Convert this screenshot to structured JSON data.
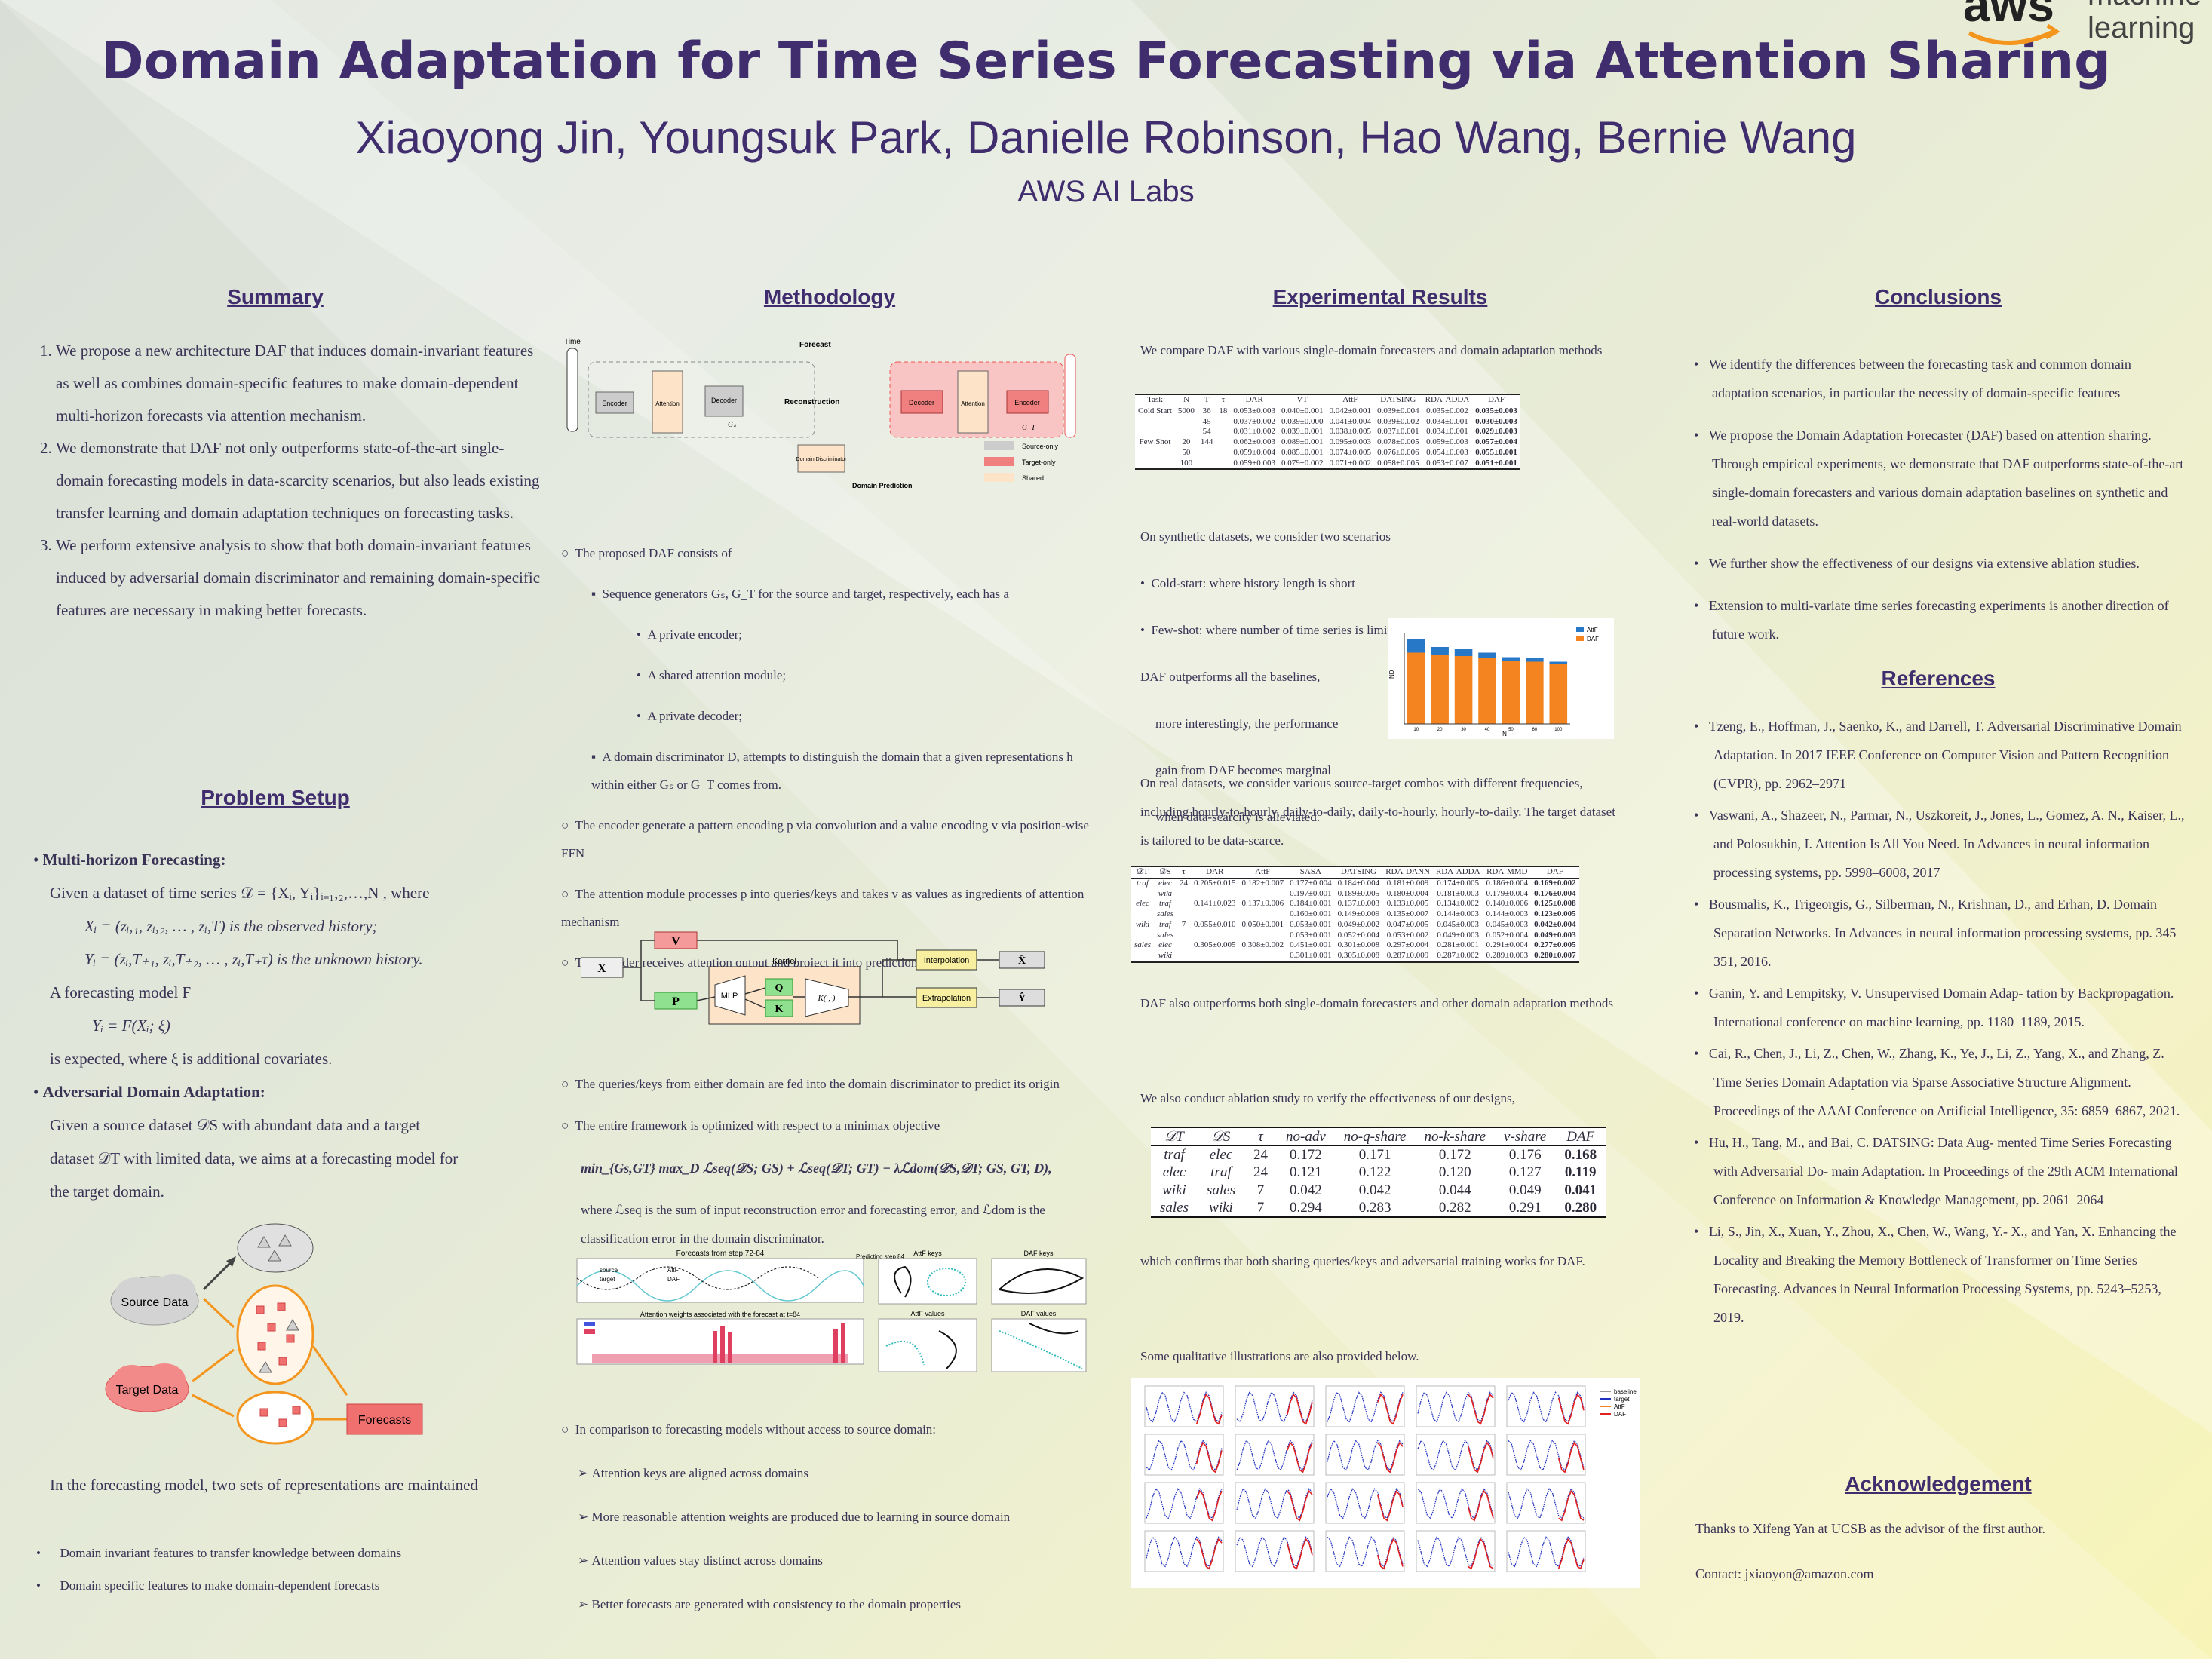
{
  "header": {
    "title": "Domain Adaptation for Time Series Forecasting via Attention Sharing",
    "authors": "Xiaoyong Jin, Youngsuk Park, Danielle Robinson, Hao Wang, Bernie Wang",
    "affiliation": "AWS AI Labs",
    "logo_word": "aws",
    "logo_line1": "machine",
    "logo_line2": "learning"
  },
  "summary": {
    "heading": "Summary",
    "items": [
      "We propose a new architecture DAF that induces domain-invariant features as well as combines domain-specific features to make domain-dependent multi-horizon forecasts via attention mechanism.",
      "We demonstrate that DAF not only outperforms state-of-the-art single-domain forecasting models in data-scarcity scenarios, but also leads existing transfer learning and domain adaptation techniques on forecasting tasks.",
      "We perform extensive analysis to show that both domain-invariant features induced by adversarial domain discriminator and remaining domain-specific features are necessary in making better forecasts."
    ]
  },
  "problem": {
    "heading": "Problem Setup",
    "mh_title": "Multi-horizon Forecasting:",
    "mh_line1": "Given a dataset of time series 𝒟 = {Xᵢ, Yᵢ}ᵢ₌₁,₂,…,N , where",
    "mh_line2": "Xᵢ = (zᵢ,₁, zᵢ,₂, … , zᵢ,T) is the observed history;",
    "mh_line3": "Yᵢ = (zᵢ,T₊₁, zᵢ,T₊₂, … , zᵢ,T₊τ) is the unknown history.",
    "mh_line4": "A forecasting model F",
    "mh_line5": "Yᵢ = F(Xᵢ; ξ)",
    "mh_line6": "is expected, where ξ is additional covariates.",
    "ada_title": "Adversarial Domain Adaptation:",
    "ada_line1": "Given a source dataset 𝒟S  with abundant data and a target",
    "ada_line2": "dataset 𝒟T with limited data,  we aims at a forecasting model for",
    "ada_line3": "the target domain.",
    "fig_source": "Source Data",
    "fig_target": "Target Data",
    "fig_forecasts": "Forecasts",
    "rep_line": "In the forecasting model, two sets of representations are maintained",
    "rep_items": [
      "Domain invariant features to transfer knowledge between domains",
      "Domain specific features to make domain-dependent forecasts"
    ]
  },
  "method": {
    "heading": "Methodology",
    "fig": {
      "time": "Time",
      "forecast": "Forecast",
      "reconstruction": "Reconstruction",
      "encoder": "Encoder",
      "attention": "Attention",
      "decoder": "Decoder",
      "gs": "Gₛ",
      "gt": "G_T",
      "disc": "Domain Discriminator",
      "domain_pred": "Domain Prediction",
      "leg_source": "Source-only",
      "leg_target": "Target-only",
      "leg_shared": "Shared"
    },
    "p1": "The proposed DAF consists of",
    "p1a": "Sequence generators Gₛ, G_T for the source and target, respectively, each has a",
    "p1a_items": [
      "A private encoder;",
      "A shared attention module;",
      "A private decoder;"
    ],
    "p1b": "A domain discriminator D, attempts to distinguish the domain that a given representations h within either Gₛ or G_T comes from.",
    "p2": "The encoder generate a pattern encoding p via convolution and a value encoding v via position-wise FFN",
    "p3": "The attention module processes p into queries/keys and takes v as values as ingredients of attention mechanism",
    "p4": "The decoder receives attention output and project it into predictions",
    "kern": {
      "x": "X",
      "v": "V",
      "p": "P",
      "mlp": "MLP",
      "q": "Q",
      "k": "K",
      "kernel": "Kernel",
      "kfun": "K(·,·)",
      "interp": "Interpolation",
      "extrap": "Extrapolation",
      "xhat": "X̂",
      "yhat": "Ŷ"
    },
    "p5": "The queries/keys from either domain are fed into the domain discriminator to predict its origin",
    "p6": "The entire framework is optimized with respect to a minimax objective",
    "formula": "min_{Gs,GT} max_D ℒseq(𝒟S; GS) + ℒseq(𝒟T; GT) − λℒdom(𝒟S,𝒟T; GS, GT, D),",
    "p6b": "where ℒseq is the sum of input reconstruction error and forecasting error, and ℒdom is the classification error in the domain discriminator.",
    "vis": {
      "t1": "Forecasts from step 72-84",
      "t2": "Predicting step 84",
      "t3": "AttF keys",
      "t4": "DAF keys",
      "t5": "Attention weights associated with the forecast at t=84",
      "t6": "AttF values",
      "t7": "DAF values",
      "l_source": "source",
      "l_target": "target",
      "l_attf": "AttF",
      "l_daf": "DAF"
    },
    "p7": "In comparison to forecasting models without access to source domain:",
    "p7_items": [
      "Attention keys are aligned across domains",
      "More reasonable attention weights are produced due to learning in source domain",
      "Attention values stay distinct across domains",
      "Better forecasts are generated with consistency to the domain properties"
    ]
  },
  "results": {
    "heading": "Experimental Results",
    "p1": "We compare DAF with various single-domain forecasters and domain adaptation methods",
    "t1": {
      "headers": [
        "Task",
        "N",
        "T",
        "τ",
        "DAR",
        "VT",
        "AttF",
        "DATSING",
        "RDA-ADDA",
        "DAF"
      ],
      "rows": [
        [
          "Cold Start",
          "5000",
          "36",
          "18",
          "0.053±0.003",
          "0.040±0.001",
          "0.042±0.001",
          "0.039±0.004",
          "0.035±0.002",
          "0.035±0.003"
        ],
        [
          "",
          "",
          "45",
          "",
          "0.037±0.002",
          "0.039±0.000",
          "0.041±0.004",
          "0.039±0.002",
          "0.034±0.001",
          "0.030±0.003"
        ],
        [
          "",
          "",
          "54",
          "",
          "0.031±0.002",
          "0.039±0.001",
          "0.038±0.005",
          "0.037±0.001",
          "0.034±0.001",
          "0.029±0.003"
        ],
        [
          "Few Shot",
          "20",
          "144",
          "",
          "0.062±0.003",
          "0.089±0.001",
          "0.095±0.003",
          "0.078±0.005",
          "0.059±0.003",
          "0.057±0.004"
        ],
        [
          "",
          "50",
          "",
          "",
          "0.059±0.004",
          "0.085±0.001",
          "0.074±0.005",
          "0.076±0.006",
          "0.054±0.003",
          "0.055±0.001"
        ],
        [
          "",
          "100",
          "",
          "",
          "0.059±0.003",
          "0.079±0.002",
          "0.071±0.002",
          "0.058±0.005",
          "0.053±0.007",
          "0.051±0.001"
        ]
      ]
    },
    "p2": "On synthetic datasets, we consider two scenarios",
    "p2_items": [
      "Cold-start: where history length is short",
      "Few-shot: where number of time series is limited"
    ],
    "p3a": "DAF outperforms all the baselines,",
    "p3b": "more interestingly, the performance",
    "p3c": "gain from DAF becomes marginal",
    "p3d": "when data-scarcity is alleviated.",
    "chart_data": {
      "type": "bar",
      "categories": [
        "10",
        "20",
        "30",
        "40",
        "50",
        "60",
        "100"
      ],
      "series": [
        {
          "name": "AttF",
          "values": [
            0.075,
            0.068,
            0.066,
            0.063,
            0.059,
            0.058,
            0.055
          ]
        },
        {
          "name": "DAF",
          "values": [
            0.063,
            0.061,
            0.06,
            0.058,
            0.056,
            0.055,
            0.053
          ]
        }
      ],
      "xlabel": "N",
      "ylabel": "ND",
      "ylim": [
        0,
        0.08
      ]
    },
    "p4": "On real datasets, we consider various source-target combos with different frequencies, including hourly-to-hourly, daily-to-daily, daily-to-hourly, hourly-to-daily. The target dataset is tailored to be data-scarce.",
    "t2": {
      "headers": [
        "𝒟T",
        "𝒟S",
        "τ",
        "DAR",
        "AttF",
        "SASA",
        "DATSING",
        "RDA-DANN",
        "RDA-ADDA",
        "RDA-MMD",
        "DAF"
      ],
      "rows": [
        [
          "traf",
          "elec",
          "24",
          "0.205±0.015",
          "0.182±0.007",
          "0.177±0.004",
          "0.184±0.004",
          "0.181±0.009",
          "0.174±0.005",
          "0.186±0.004",
          "0.169±0.002"
        ],
        [
          "",
          "wiki",
          "",
          "",
          "",
          "0.197±0.001",
          "0.189±0.005",
          "0.180±0.004",
          "0.181±0.003",
          "0.179±0.004",
          "0.176±0.004"
        ],
        [
          "elec",
          "traf",
          "",
          "0.141±0.023",
          "0.137±0.006",
          "0.184±0.001",
          "0.137±0.003",
          "0.133±0.005",
          "0.134±0.002",
          "0.140±0.006",
          "0.125±0.008"
        ],
        [
          "",
          "sales",
          "",
          "",
          "",
          "0.160±0.001",
          "0.149±0.009",
          "0.135±0.007",
          "0.144±0.003",
          "0.144±0.003",
          "0.123±0.005"
        ],
        [
          "wiki",
          "traf",
          "7",
          "0.055±0.010",
          "0.050±0.001",
          "0.053±0.001",
          "0.049±0.002",
          "0.047±0.005",
          "0.045±0.003",
          "0.045±0.003",
          "0.042±0.004"
        ],
        [
          "",
          "sales",
          "",
          "",
          "",
          "0.053±0.001",
          "0.052±0.004",
          "0.053±0.002",
          "0.049±0.003",
          "0.052±0.004",
          "0.049±0.003"
        ],
        [
          "sales",
          "elec",
          "",
          "0.305±0.005",
          "0.308±0.002",
          "0.451±0.001",
          "0.301±0.008",
          "0.297±0.004",
          "0.281±0.001",
          "0.291±0.004",
          "0.277±0.005"
        ],
        [
          "",
          "wiki",
          "",
          "",
          "",
          "0.301±0.001",
          "0.305±0.008",
          "0.287±0.009",
          "0.287±0.002",
          "0.289±0.003",
          "0.280±0.007"
        ]
      ]
    },
    "p5": "DAF also outperforms both single-domain forecasters and other domain adaptation methods",
    "p6": "We also conduct ablation study to verify the effectiveness of our designs,",
    "t3": {
      "headers": [
        "𝒟T",
        "𝒟S",
        "τ",
        "no-adv",
        "no-q-share",
        "no-k-share",
        "v-share",
        "DAF"
      ],
      "rows": [
        [
          "traf",
          "elec",
          "24",
          "0.172",
          "0.171",
          "0.172",
          "0.176",
          "0.168"
        ],
        [
          "elec",
          "traf",
          "24",
          "0.121",
          "0.122",
          "0.120",
          "0.127",
          "0.119"
        ],
        [
          "wiki",
          "sales",
          "7",
          "0.042",
          "0.042",
          "0.044",
          "0.049",
          "0.041"
        ],
        [
          "sales",
          "wiki",
          "7",
          "0.294",
          "0.283",
          "0.282",
          "0.291",
          "0.280"
        ]
      ]
    },
    "p7": "which confirms that both sharing queries/keys and adversarial training works for DAF.",
    "p8": "Some qualitative illustrations are also provided below.",
    "grid_legend": [
      "baseline",
      "target",
      "AttF",
      "DAF"
    ]
  },
  "conclusions": {
    "heading": "Conclusions",
    "items": [
      "We identify the differences between the forecasting task and common domain adaptation scenarios, in particular the necessity of domain-specific features",
      "We propose the Domain Adaptation Forecaster (DAF) based on attention sharing. Through empirical experiments, we demonstrate that DAF outperforms state-of-the-art single-domain forecasters and various domain adaptation baselines on synthetic and real-world datasets.",
      "We further show the effectiveness of our designs via extensive ablation studies.",
      "Extension to multi-variate time series forecasting experiments is another direction of future work."
    ]
  },
  "references": {
    "heading": "References",
    "items": [
      "Tzeng, E., Hoffman, J., Saenko, K., and Darrell, T. Adversarial Discriminative Domain Adaptation. In 2017 IEEE Conference on Computer Vision and Pattern Recognition (CVPR), pp. 2962–2971",
      "Vaswani, A., Shazeer, N., Parmar, N., Uszkoreit, J., Jones, L., Gomez, A. N., Kaiser, L., and Polosukhin, I. Attention Is All You Need. In Advances in neural information processing systems, pp. 5998–6008, 2017",
      "Bousmalis, K., Trigeorgis, G., Silberman, N., Krishnan, D., and Erhan, D. Domain Separation Networks. In Advances in neural information processing systems, pp. 345–351, 2016.",
      "Ganin, Y. and Lempitsky, V. Unsupervised Domain Adap- tation by Backpropagation. International conference on machine learning, pp. 1180–1189, 2015.",
      "Cai, R., Chen, J., Li, Z., Chen, W., Zhang, K., Ye, J., Li, Z., Yang, X., and Zhang, Z. Time Series Domain Adaptation via Sparse Associative Structure Alignment. Proceedings of the AAAI Conference on Artificial Intelligence, 35: 6859–6867, 2021.",
      "Hu, H., Tang, M., and Bai, C. DATSING: Data Aug- mented Time Series Forecasting with Adversarial Do- main Adaptation. In Proceedings of the 29th ACM International Conference on Information & Knowledge Management, pp. 2061–2064",
      "Li, S., Jin, X., Xuan, Y., Zhou, X., Chen, W., Wang, Y.- X., and Yan, X. Enhancing the Locality and Breaking the Memory Bottleneck of Transformer on Time Series Forecasting. Advances in Neural Information Processing Systems, pp. 5243–5253, 2019."
    ]
  },
  "ack": {
    "heading": "Acknowledgement",
    "text": "Thanks to Xifeng Yan at UCSB as the advisor of the first author.",
    "contact": "Contact: jxiaoyon@amazon.com"
  },
  "colors": {
    "heading": "#3f2d6e",
    "accent": "#f4951d",
    "source": "#c8c8c8",
    "target": "#f08080",
    "shared": "#fde3c8"
  }
}
